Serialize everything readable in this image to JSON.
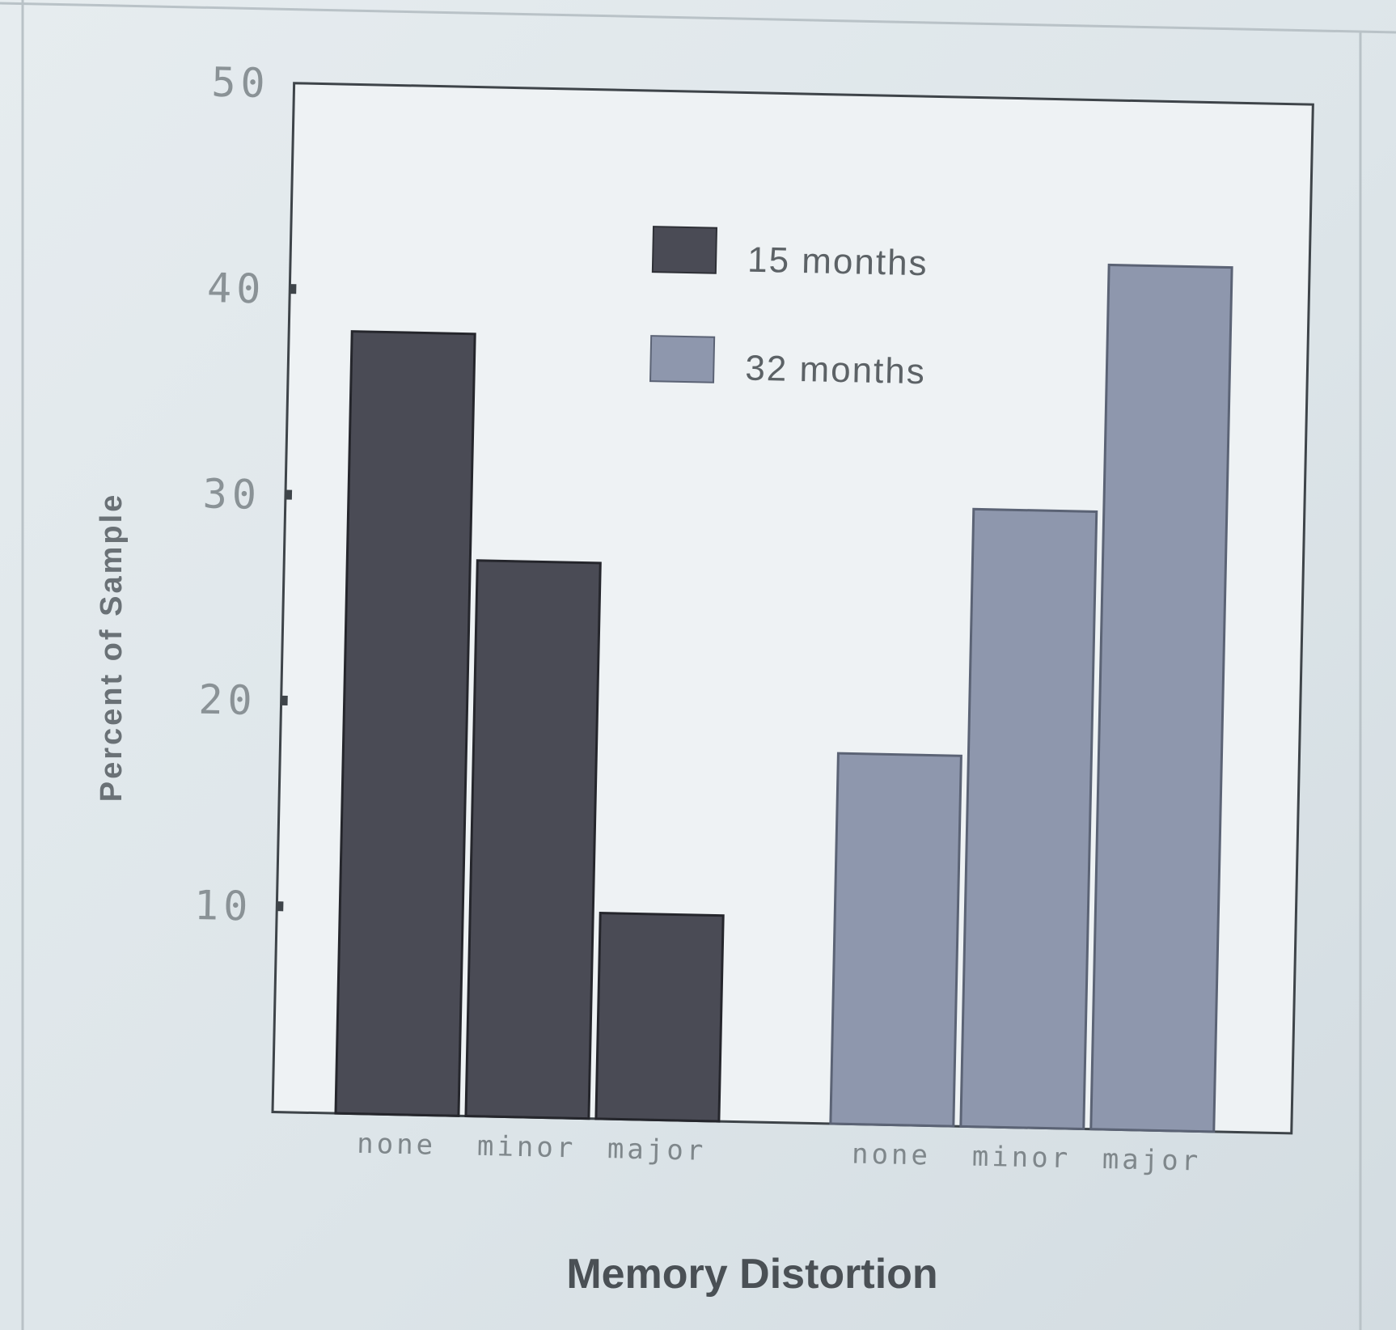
{
  "chart_data": {
    "type": "bar",
    "title": "",
    "xlabel": "Memory Distortion",
    "ylabel": "Percent of Sample",
    "ylim": [
      0,
      50
    ],
    "yticks": [
      10,
      20,
      30,
      40,
      50
    ],
    "grid": false,
    "legend_position": "top-center",
    "categories": [
      "none",
      "minor",
      "major"
    ],
    "series": [
      {
        "name": "15 months",
        "color": "#4a4b55",
        "values": [
          38,
          27,
          10
        ]
      },
      {
        "name": "32 months",
        "color": "#8e97ad",
        "values": [
          18,
          30,
          42
        ]
      }
    ]
  }
}
